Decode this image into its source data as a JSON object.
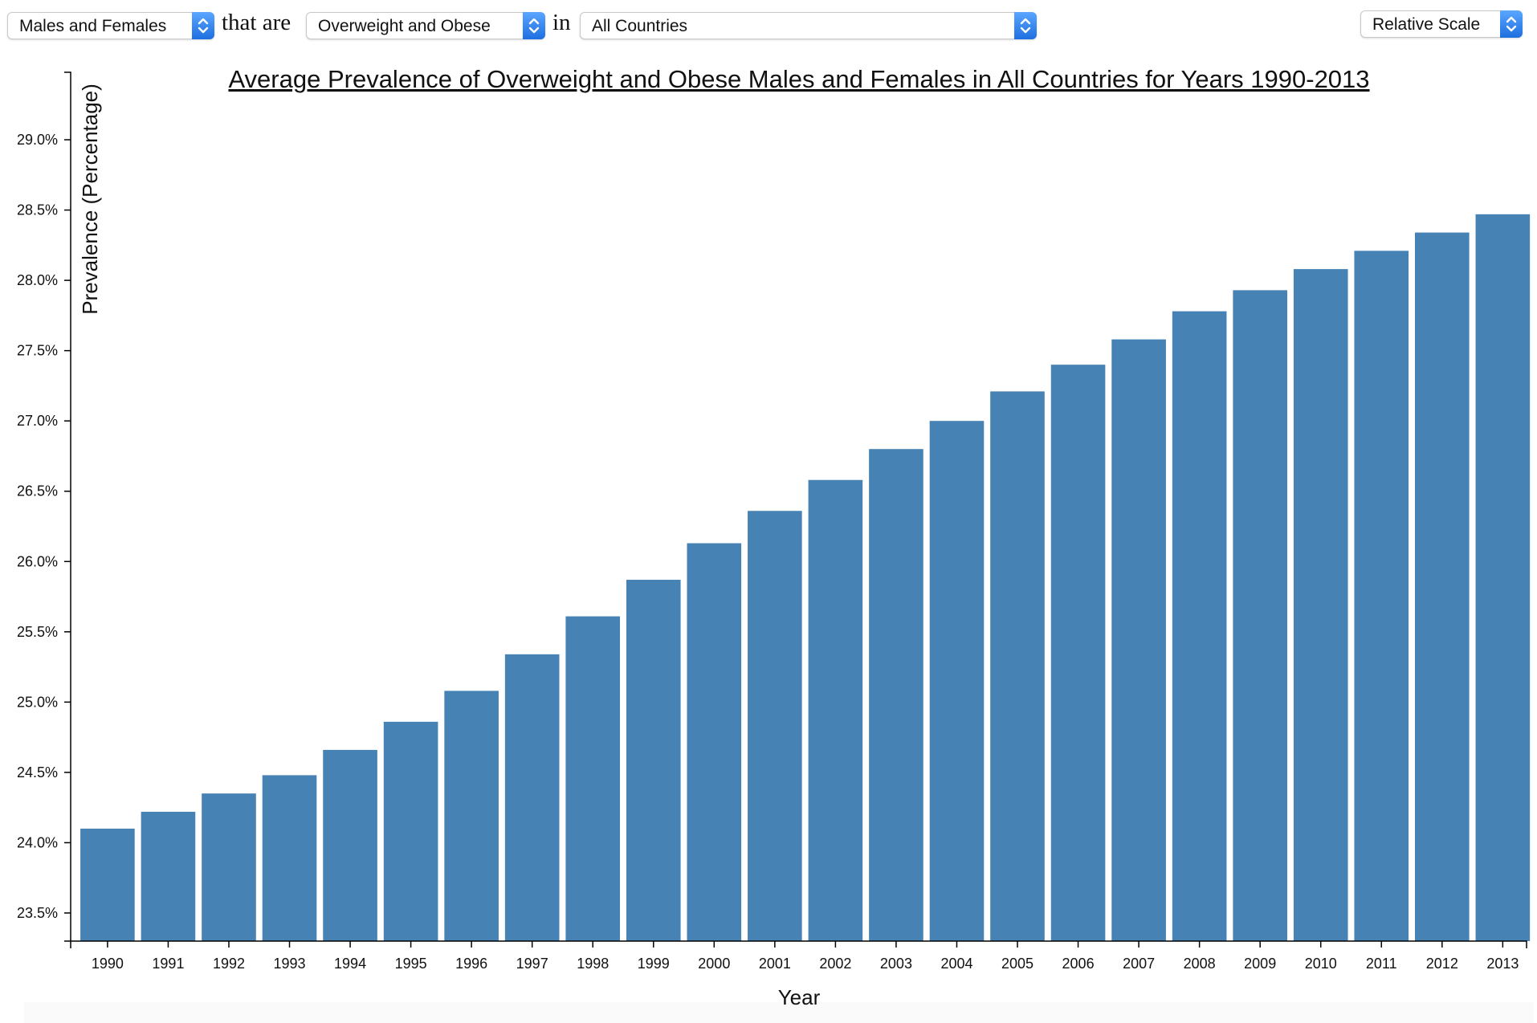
{
  "controls": {
    "sex_select": {
      "value": "Males and Females"
    },
    "connector_that": "that are",
    "weight_select": {
      "value": "Overweight and Obese"
    },
    "connector_in": "in",
    "country_select": {
      "value": "All Countries"
    },
    "scale_select": {
      "value": "Relative Scale"
    }
  },
  "colors": {
    "bar": "#4682b4",
    "axis": "#000000",
    "select_arrow": "#2f7ff0"
  },
  "chart_data": {
    "type": "bar",
    "title": "Average Prevalence of Overweight and Obese Males and Females in All Countries for Years 1990-2013",
    "xlabel": "Year",
    "ylabel": "Prevalence (Percentage)",
    "categories": [
      "1990",
      "1991",
      "1992",
      "1993",
      "1994",
      "1995",
      "1996",
      "1997",
      "1998",
      "1999",
      "2000",
      "2001",
      "2002",
      "2003",
      "2004",
      "2005",
      "2006",
      "2007",
      "2008",
      "2009",
      "2010",
      "2011",
      "2012",
      "2013"
    ],
    "values": [
      24.1,
      24.22,
      24.35,
      24.48,
      24.66,
      24.86,
      25.08,
      25.34,
      25.61,
      25.87,
      26.13,
      26.36,
      26.58,
      26.8,
      27.0,
      27.21,
      27.4,
      27.58,
      27.78,
      27.93,
      28.08,
      28.21,
      28.34,
      28.47
    ],
    "y_ticks": [
      "23.5%",
      "24.0%",
      "24.5%",
      "25.0%",
      "25.5%",
      "26.0%",
      "26.5%",
      "27.0%",
      "27.5%",
      "28.0%",
      "28.5%",
      "29.0%"
    ],
    "y_tick_values": [
      23.5,
      24.0,
      24.5,
      25.0,
      25.5,
      26.0,
      26.5,
      27.0,
      27.5,
      28.0,
      28.5,
      29.0
    ],
    "ylim": [
      23.3,
      29.48
    ],
    "grid": false
  }
}
